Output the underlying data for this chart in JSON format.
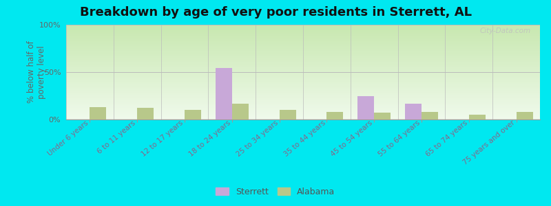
{
  "title": "Breakdown by age of very poor residents in Sterrett, AL",
  "ylabel": "% below half of\npoverty level",
  "categories": [
    "Under 6 years",
    "6 to 11 years",
    "12 to 17 years",
    "18 to 24 years",
    "25 to 34 years",
    "35 to 44 years",
    "45 to 54 years",
    "55 to 64 years",
    "65 to 74 years",
    "75 years and over"
  ],
  "sterrett_values": [
    0,
    0,
    0,
    54,
    0,
    0,
    25,
    17,
    0,
    0
  ],
  "alabama_values": [
    13,
    12,
    10,
    17,
    10,
    8,
    7,
    8,
    5,
    8
  ],
  "sterrett_color": "#c8a8d8",
  "alabama_color": "#b8c88a",
  "bar_width": 0.35,
  "ylim": [
    0,
    100
  ],
  "yticks": [
    0,
    50,
    100
  ],
  "ytick_labels": [
    "0%",
    "50%",
    "100%"
  ],
  "bg_top": "#c8e8b0",
  "bg_bottom": "#f0faec",
  "outer_bg": "#00e8f0",
  "title_fontsize": 13,
  "axis_label_fontsize": 8.5,
  "tick_fontsize": 8,
  "legend_labels": [
    "Sterrett",
    "Alabama"
  ],
  "watermark": "City-Data.com",
  "label_color": "#886688",
  "tick_label_color": "#666666"
}
